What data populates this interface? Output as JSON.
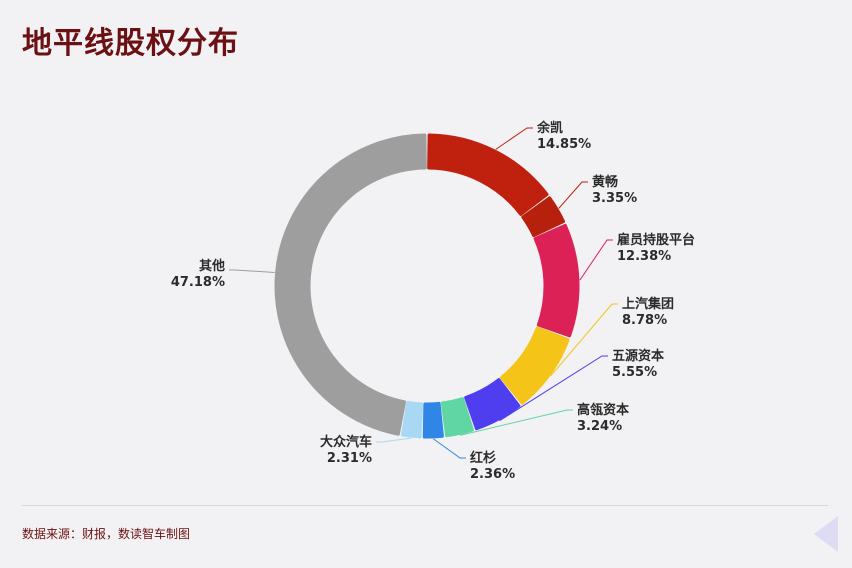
{
  "title": "地平线股权分布",
  "source": "数据来源：财报，数读智车制图",
  "chart_data": {
    "type": "pie",
    "variant": "donut",
    "slices": [
      {
        "name": "余凯",
        "value": 14.85,
        "label": "14.85%",
        "color": "#c0210f"
      },
      {
        "name": "黄畅",
        "value": 3.35,
        "label": "3.35%",
        "color": "#b8200e"
      },
      {
        "name": "雇员持股平台",
        "value": 12.38,
        "label": "12.38%",
        "color": "#dc2157"
      },
      {
        "name": "上汽集团",
        "value": 8.78,
        "label": "8.78%",
        "color": "#f5c419"
      },
      {
        "name": "五源资本",
        "value": 5.55,
        "label": "5.55%",
        "color": "#4f3df0"
      },
      {
        "name": "高瓴资本",
        "value": 3.24,
        "label": "3.24%",
        "color": "#5fd6a3"
      },
      {
        "name": "红杉",
        "value": 2.36,
        "label": "2.36%",
        "color": "#2f86e6"
      },
      {
        "name": "大众汽车",
        "value": 2.31,
        "label": "2.31%",
        "color": "#a9d8f5"
      },
      {
        "name": "其他",
        "value": 47.18,
        "label": "47.18%",
        "color": "#9e9e9e"
      }
    ]
  }
}
